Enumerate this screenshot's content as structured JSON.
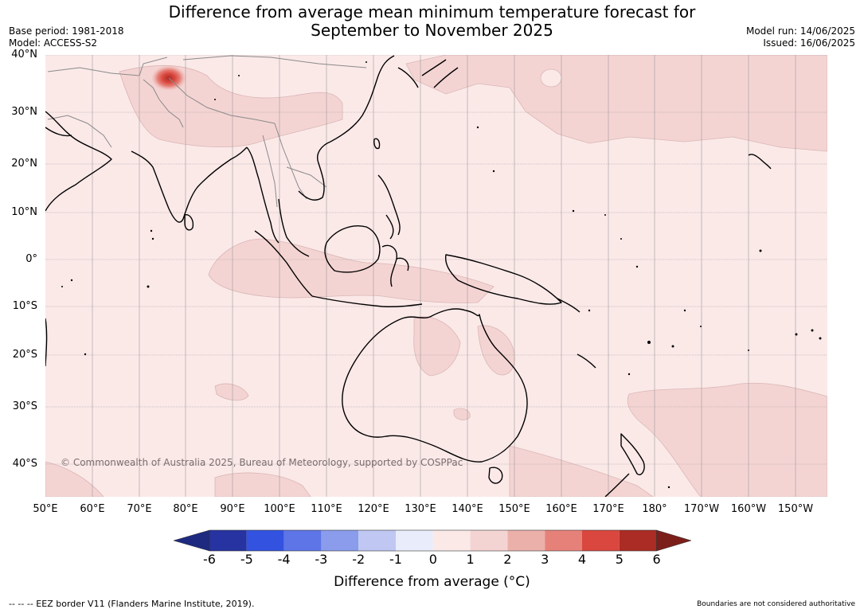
{
  "title": {
    "line1": "Difference from average mean minimum temperature forecast for",
    "line2": "September to November 2025"
  },
  "meta_left": {
    "base_period": "Base period: 1981-2018",
    "model": "Model: ACCESS-S2"
  },
  "meta_right": {
    "model_run": "Model run: 14/06/2025",
    "issued": "Issued: 16/06/2025"
  },
  "map": {
    "lat_labels": [
      "40°N",
      "30°N",
      "20°N",
      "10°N",
      "0°",
      "10°S",
      "20°S",
      "30°S",
      "40°S"
    ],
    "lon_labels": [
      "50°E",
      "60°E",
      "70°E",
      "80°E",
      "90°E",
      "100°E",
      "110°E",
      "120°E",
      "130°E",
      "140°E",
      "150°E",
      "160°E",
      "170°E",
      "180°",
      "170°W",
      "160°W",
      "150°W"
    ],
    "copyright": "© Commonwealth of Australia 2025, Bureau of Meteorology, supported by COSPPac",
    "colors": {
      "anomaly_0_1": "#fbe9e8",
      "anomaly_1_2": "#f4d4d3",
      "anomaly_2_3": "#ecb0ab",
      "anomaly_3_4": "#e68179",
      "anomaly_4_5": "#d9473e",
      "anomaly_5_6": "#ab2b25",
      "coastline": "#000000",
      "border": "#8a8a8a",
      "gridline": "#9a9a9a"
    }
  },
  "colorbar": {
    "ticks": [
      "-6",
      "-5",
      "-4",
      "-3",
      "-2",
      "-1",
      "0",
      "1",
      "2",
      "3",
      "4",
      "5",
      "6"
    ],
    "colors": [
      "#2633a0",
      "#3352e0",
      "#5d75e6",
      "#8a9ceb",
      "#bfc7f2",
      "#e9ecfa",
      "#fbe9e8",
      "#f4d4d3",
      "#ecb0ab",
      "#e68179",
      "#d9473e",
      "#ab2b25"
    ],
    "under_color": "#1e2a80",
    "over_color": "#7c1e1a",
    "label": "Difference from average ($^\\circ$C)",
    "label_display": "Difference from average (°C)"
  },
  "footer": {
    "eez_note": "--  --  -- EEZ border V11 (Flanders Marine Institute, 2019).",
    "disclaimer": "Boundaries are not considered authoritative"
  }
}
